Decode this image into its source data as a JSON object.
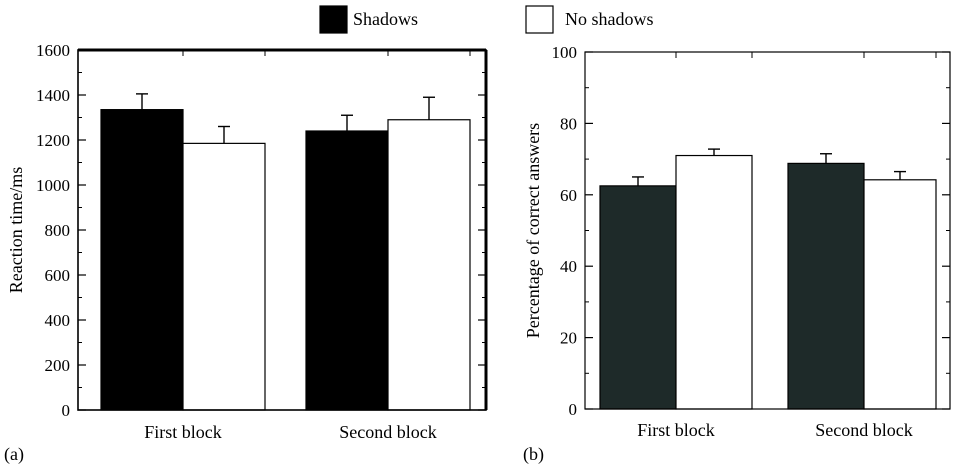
{
  "legend": [
    {
      "label": "Shadows",
      "color": "#000000"
    },
    {
      "label": "No shadows",
      "color": "#ffffff"
    }
  ],
  "chart_data": [
    {
      "type": "bar",
      "panel": "(a)",
      "ylabel": "Reaction time/ms",
      "xlabel": "",
      "categories": [
        "First block",
        "Second block"
      ],
      "ylim": [
        0,
        1600
      ],
      "yticks": [
        0,
        200,
        400,
        600,
        800,
        1000,
        1200,
        1400,
        1600
      ],
      "yticks_minor": [
        100,
        300,
        500,
        700,
        900,
        1100,
        1300,
        1500
      ],
      "grid": false,
      "series": [
        {
          "name": "Shadows",
          "color": "#000000",
          "values": [
            1335,
            1240
          ],
          "errors": [
            70,
            70
          ]
        },
        {
          "name": "No shadows",
          "color": "#ffffff",
          "values": [
            1185,
            1290
          ],
          "errors": [
            75,
            100
          ]
        }
      ]
    },
    {
      "type": "bar",
      "panel": "(b)",
      "ylabel": "Percentage of correct answers",
      "xlabel": "",
      "categories": [
        "First block",
        "Second block"
      ],
      "ylim": [
        0,
        100
      ],
      "yticks": [
        0,
        20,
        40,
        60,
        80,
        100
      ],
      "yticks_minor": [
        10,
        30,
        50,
        70,
        90
      ],
      "grid": false,
      "series": [
        {
          "name": "Shadows",
          "color": "#1e2a29",
          "values": [
            62.5,
            68.8
          ],
          "errors": [
            2.5,
            2.7
          ]
        },
        {
          "name": "No shadows",
          "color": "#ffffff",
          "values": [
            71.0,
            64.2
          ],
          "errors": [
            1.8,
            2.3
          ]
        }
      ]
    }
  ]
}
